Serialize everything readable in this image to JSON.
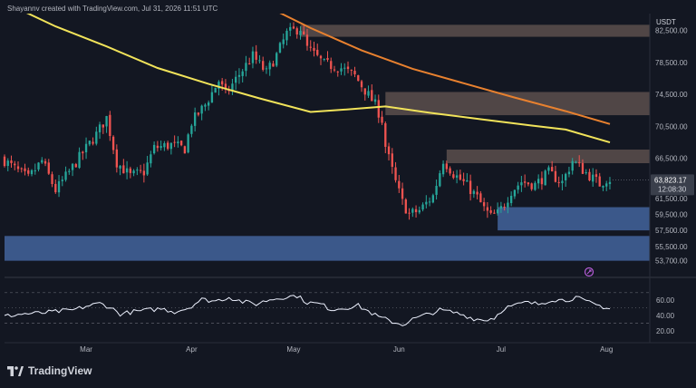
{
  "header": {
    "attribution": "Shayannv created with TradingView.com, Jul 31, 2026 11:51 UTC"
  },
  "brand": {
    "name": "TradingView",
    "logo_icon": "tradingview-logo-icon"
  },
  "colors": {
    "background": "#131722",
    "up": "#26a69a",
    "down": "#ef5350",
    "ma_short": "#f1e35a",
    "ma_long": "#e8812f",
    "resistance_zone": "#6b5b55",
    "support_zone": "#4a6fae",
    "rsi_line": "#eef2ff",
    "price_tag": "#3a3f4b"
  },
  "chart_data": {
    "type": "candlestick",
    "currency_label": "USDT",
    "price_ticks": [
      "82,500.00",
      "78,500.00",
      "74,500.00",
      "70,500.00",
      "66,500.00",
      "61,500.00",
      "59,500.00",
      "57,500.00",
      "55,500.00",
      "53,700.00"
    ],
    "price_range": [
      52300,
      84600
    ],
    "current_price": "63,823.17",
    "countdown": "12:08:30",
    "x_ticks": [
      "Mar",
      "Apr",
      "May",
      "Jun",
      "Jul",
      "Aug"
    ],
    "x_ticks_day_index": [
      24,
      55,
      85,
      116,
      146,
      177
    ],
    "day_range": [
      0,
      190
    ],
    "anchors": [
      [
        0,
        66600
      ],
      [
        4,
        65200
      ],
      [
        8,
        64000
      ],
      [
        12,
        66200
      ],
      [
        16,
        62500
      ],
      [
        20,
        64800
      ],
      [
        24,
        67200
      ],
      [
        28,
        69500
      ],
      [
        31,
        71600
      ],
      [
        34,
        66000
      ],
      [
        38,
        64300
      ],
      [
        42,
        64800
      ],
      [
        45,
        67800
      ],
      [
        50,
        68200
      ],
      [
        54,
        67700
      ],
      [
        56,
        71000
      ],
      [
        60,
        73200
      ],
      [
        64,
        76200
      ],
      [
        66,
        74500
      ],
      [
        70,
        77000
      ],
      [
        74,
        79300
      ],
      [
        78,
        77200
      ],
      [
        81,
        79400
      ],
      [
        84,
        82100
      ],
      [
        88,
        82800
      ],
      [
        90,
        80300
      ],
      [
        95,
        78300
      ],
      [
        100,
        77800
      ],
      [
        104,
        76800
      ],
      [
        108,
        74400
      ],
      [
        110,
        73200
      ],
      [
        112,
        71300
      ],
      [
        113,
        68000
      ],
      [
        116,
        63500
      ],
      [
        118,
        61000
      ],
      [
        120,
        59500
      ],
      [
        123,
        60000
      ],
      [
        127,
        61800
      ],
      [
        130,
        66300
      ],
      [
        133,
        64600
      ],
      [
        137,
        63100
      ],
      [
        140,
        61600
      ],
      [
        142,
        60200
      ],
      [
        144,
        59200
      ],
      [
        146,
        59600
      ],
      [
        148,
        60800
      ],
      [
        150,
        62400
      ],
      [
        153,
        63600
      ],
      [
        157,
        63200
      ],
      [
        161,
        64700
      ],
      [
        165,
        63500
      ],
      [
        168,
        66200
      ],
      [
        172,
        64700
      ],
      [
        176,
        63300
      ],
      [
        178,
        63900
      ]
    ],
    "moving_averages": [
      {
        "name": "",
        "color_key": "ma_short",
        "points": [
          [
            0,
            86000
          ],
          [
            15,
            83000
          ],
          [
            30,
            80500
          ],
          [
            45,
            77800
          ],
          [
            60,
            75800
          ],
          [
            75,
            74000
          ],
          [
            90,
            72300
          ],
          [
            100,
            72600
          ],
          [
            112,
            73000
          ],
          [
            125,
            72200
          ],
          [
            140,
            71400
          ],
          [
            155,
            70600
          ],
          [
            165,
            70100
          ],
          [
            178,
            68500
          ]
        ]
      },
      {
        "name": "",
        "color_key": "ma_long",
        "points": [
          [
            55,
            90500
          ],
          [
            70,
            87000
          ],
          [
            90,
            82800
          ],
          [
            105,
            80000
          ],
          [
            120,
            77700
          ],
          [
            135,
            75900
          ],
          [
            150,
            74100
          ],
          [
            165,
            72400
          ],
          [
            178,
            70800
          ]
        ]
      }
    ],
    "zones": [
      {
        "kind": "resistance",
        "x_start": 87,
        "x_end": 190,
        "y_low": 81700,
        "y_high": 83200
      },
      {
        "kind": "resistance",
        "x_start": 112,
        "x_end": 190,
        "y_low": 71900,
        "y_high": 74800
      },
      {
        "kind": "resistance",
        "x_start": 130,
        "x_end": 190,
        "y_low": 65900,
        "y_high": 67600
      },
      {
        "kind": "support",
        "x_start": 145,
        "x_end": 190,
        "y_low": 57500,
        "y_high": 60400
      },
      {
        "kind": "support",
        "x_start": 0,
        "x_end": 190,
        "y_low": 53700,
        "y_high": 56800
      }
    ],
    "rsi": {
      "ticks": [
        "60.00",
        "40.00",
        "20.00"
      ],
      "range": [
        8,
        84
      ],
      "levels": [
        70,
        50,
        30
      ],
      "anchors": [
        [
          0,
          39
        ],
        [
          5,
          42
        ],
        [
          10,
          43
        ],
        [
          15,
          45
        ],
        [
          20,
          47
        ],
        [
          24,
          52
        ],
        [
          28,
          56
        ],
        [
          31,
          51
        ],
        [
          34,
          42
        ],
        [
          38,
          45
        ],
        [
          42,
          47
        ],
        [
          46,
          49
        ],
        [
          50,
          45
        ],
        [
          54,
          50
        ],
        [
          58,
          61
        ],
        [
          62,
          59
        ],
        [
          66,
          64
        ],
        [
          70,
          58
        ],
        [
          74,
          55
        ],
        [
          78,
          61
        ],
        [
          82,
          64
        ],
        [
          86,
          66
        ],
        [
          89,
          57
        ],
        [
          93,
          55
        ],
        [
          96,
          48
        ],
        [
          100,
          50
        ],
        [
          104,
          53
        ],
        [
          108,
          43
        ],
        [
          110,
          38
        ],
        [
          114,
          32
        ],
        [
          117,
          28
        ],
        [
          120,
          35
        ],
        [
          124,
          41
        ],
        [
          128,
          47
        ],
        [
          131,
          45
        ],
        [
          134,
          42
        ],
        [
          138,
          36
        ],
        [
          141,
          34
        ],
        [
          144,
          37
        ],
        [
          147,
          50
        ],
        [
          150,
          53
        ],
        [
          153,
          57
        ],
        [
          157,
          55
        ],
        [
          161,
          61
        ],
        [
          165,
          60
        ],
        [
          168,
          64
        ],
        [
          171,
          58
        ],
        [
          174,
          54
        ],
        [
          178,
          49
        ]
      ]
    }
  }
}
